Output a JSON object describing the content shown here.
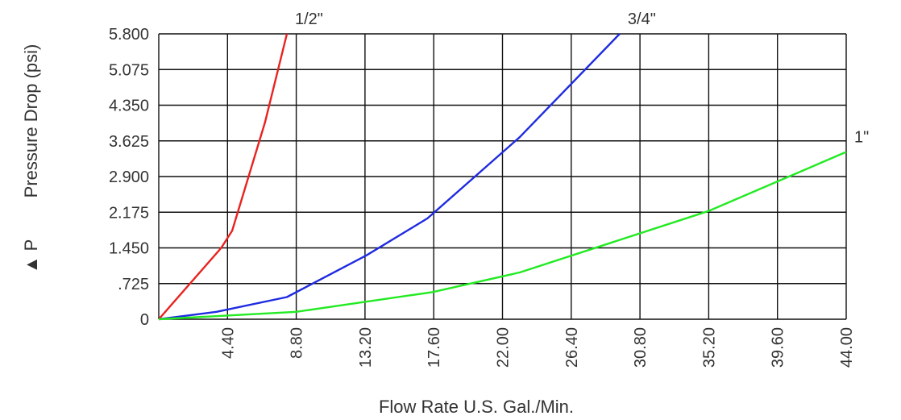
{
  "chart_data": {
    "type": "line",
    "xlabel": "Flow Rate U.S. Gal./Min.",
    "ylabel": "Pressure Drop (psi)",
    "ylabel_prefix": "▲ P",
    "x_ticks": [
      "4.40",
      "8.80",
      "13.20",
      "17.60",
      "22.00",
      "26.40",
      "30.80",
      "35.20",
      "39.60",
      "44.00"
    ],
    "y_ticks": [
      "0",
      ".725",
      "1.450",
      "2.175",
      "2.900",
      "3.625",
      "4.350",
      "5.075",
      "5.800"
    ],
    "xlim": [
      0,
      44.0
    ],
    "ylim": [
      0,
      5.8
    ],
    "grid": true,
    "series": [
      {
        "name": "1/2\"",
        "color": "#e8231f",
        "points": [
          [
            0,
            0
          ],
          [
            4.0,
            1.45
          ],
          [
            4.7,
            1.8
          ],
          [
            6.8,
            4.0
          ],
          [
            8.2,
            5.8
          ]
        ]
      },
      {
        "name": "3/4\"",
        "color": "#1f2be0",
        "points": [
          [
            0,
            0
          ],
          [
            3.7,
            0.15
          ],
          [
            8.2,
            0.45
          ],
          [
            13.3,
            1.3
          ],
          [
            17.2,
            2.05
          ],
          [
            23.1,
            3.7
          ],
          [
            29.5,
            5.8
          ]
        ]
      },
      {
        "name": "1\"",
        "color": "#22ea22",
        "points": [
          [
            0,
            0
          ],
          [
            8.8,
            0.15
          ],
          [
            17.5,
            0.55
          ],
          [
            23.1,
            0.95
          ],
          [
            35.2,
            2.2
          ],
          [
            44.0,
            3.4
          ]
        ]
      }
    ]
  }
}
